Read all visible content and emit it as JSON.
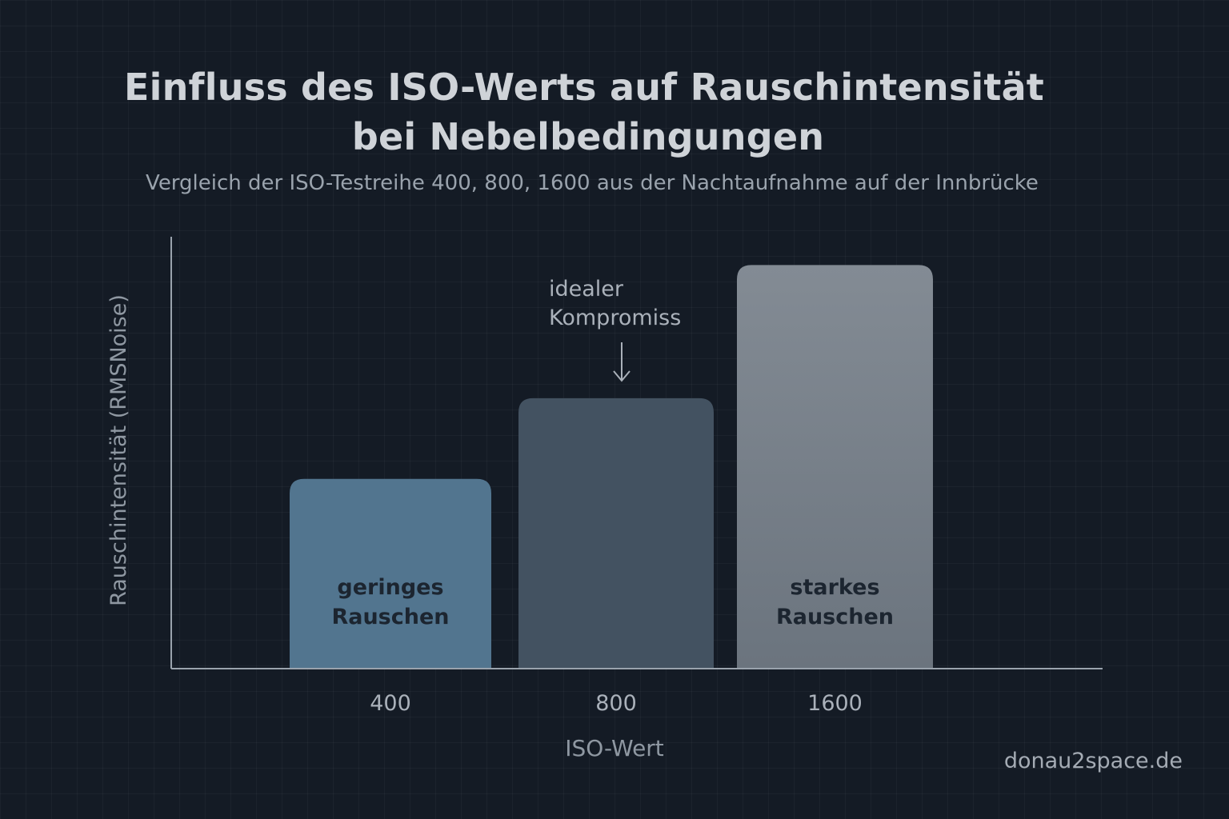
{
  "title": {
    "line1": "Einfluss des ISO-Werts auf Rauschintensität",
    "line2": "bei Nebelbedingungen"
  },
  "subtitle": "Vergleich der ISO-Testreihe 400, 800, 1600 aus der Nachtaufnahme auf der Innbrücke",
  "watermark": "donau2space.de",
  "colors": {
    "background": "#141b25",
    "axis": "#9aa3ad",
    "bar_400": "#52758f",
    "bar_800": "#435261",
    "bar_1600_top": "#838b94",
    "bar_1600_bottom": "#6b747e"
  },
  "chart_data": {
    "type": "bar",
    "categories": [
      "400",
      "800",
      "1600"
    ],
    "values": [
      47,
      67,
      100
    ],
    "title": "Einfluss des ISO-Werts auf Rauschintensität bei Nebelbedingungen",
    "subtitle": "Vergleich der ISO-Testreihe 400, 800, 1600 aus der Nachtaufnahme auf der Innbrücke",
    "xlabel": "ISO-Wert",
    "ylabel": "Rauschintensität (RMSNoise)",
    "ylim": [
      0,
      107
    ],
    "y_ticks_shown": false,
    "grid": false,
    "legend": "none",
    "bar_labels": [
      [
        "geringes",
        "Rauschen"
      ],
      [],
      [
        "starkes",
        "Rauschen"
      ]
    ],
    "annotations": [
      {
        "target_category": "800",
        "lines": [
          "idealer",
          "Kompromiss"
        ],
        "arrow": "down"
      }
    ]
  }
}
